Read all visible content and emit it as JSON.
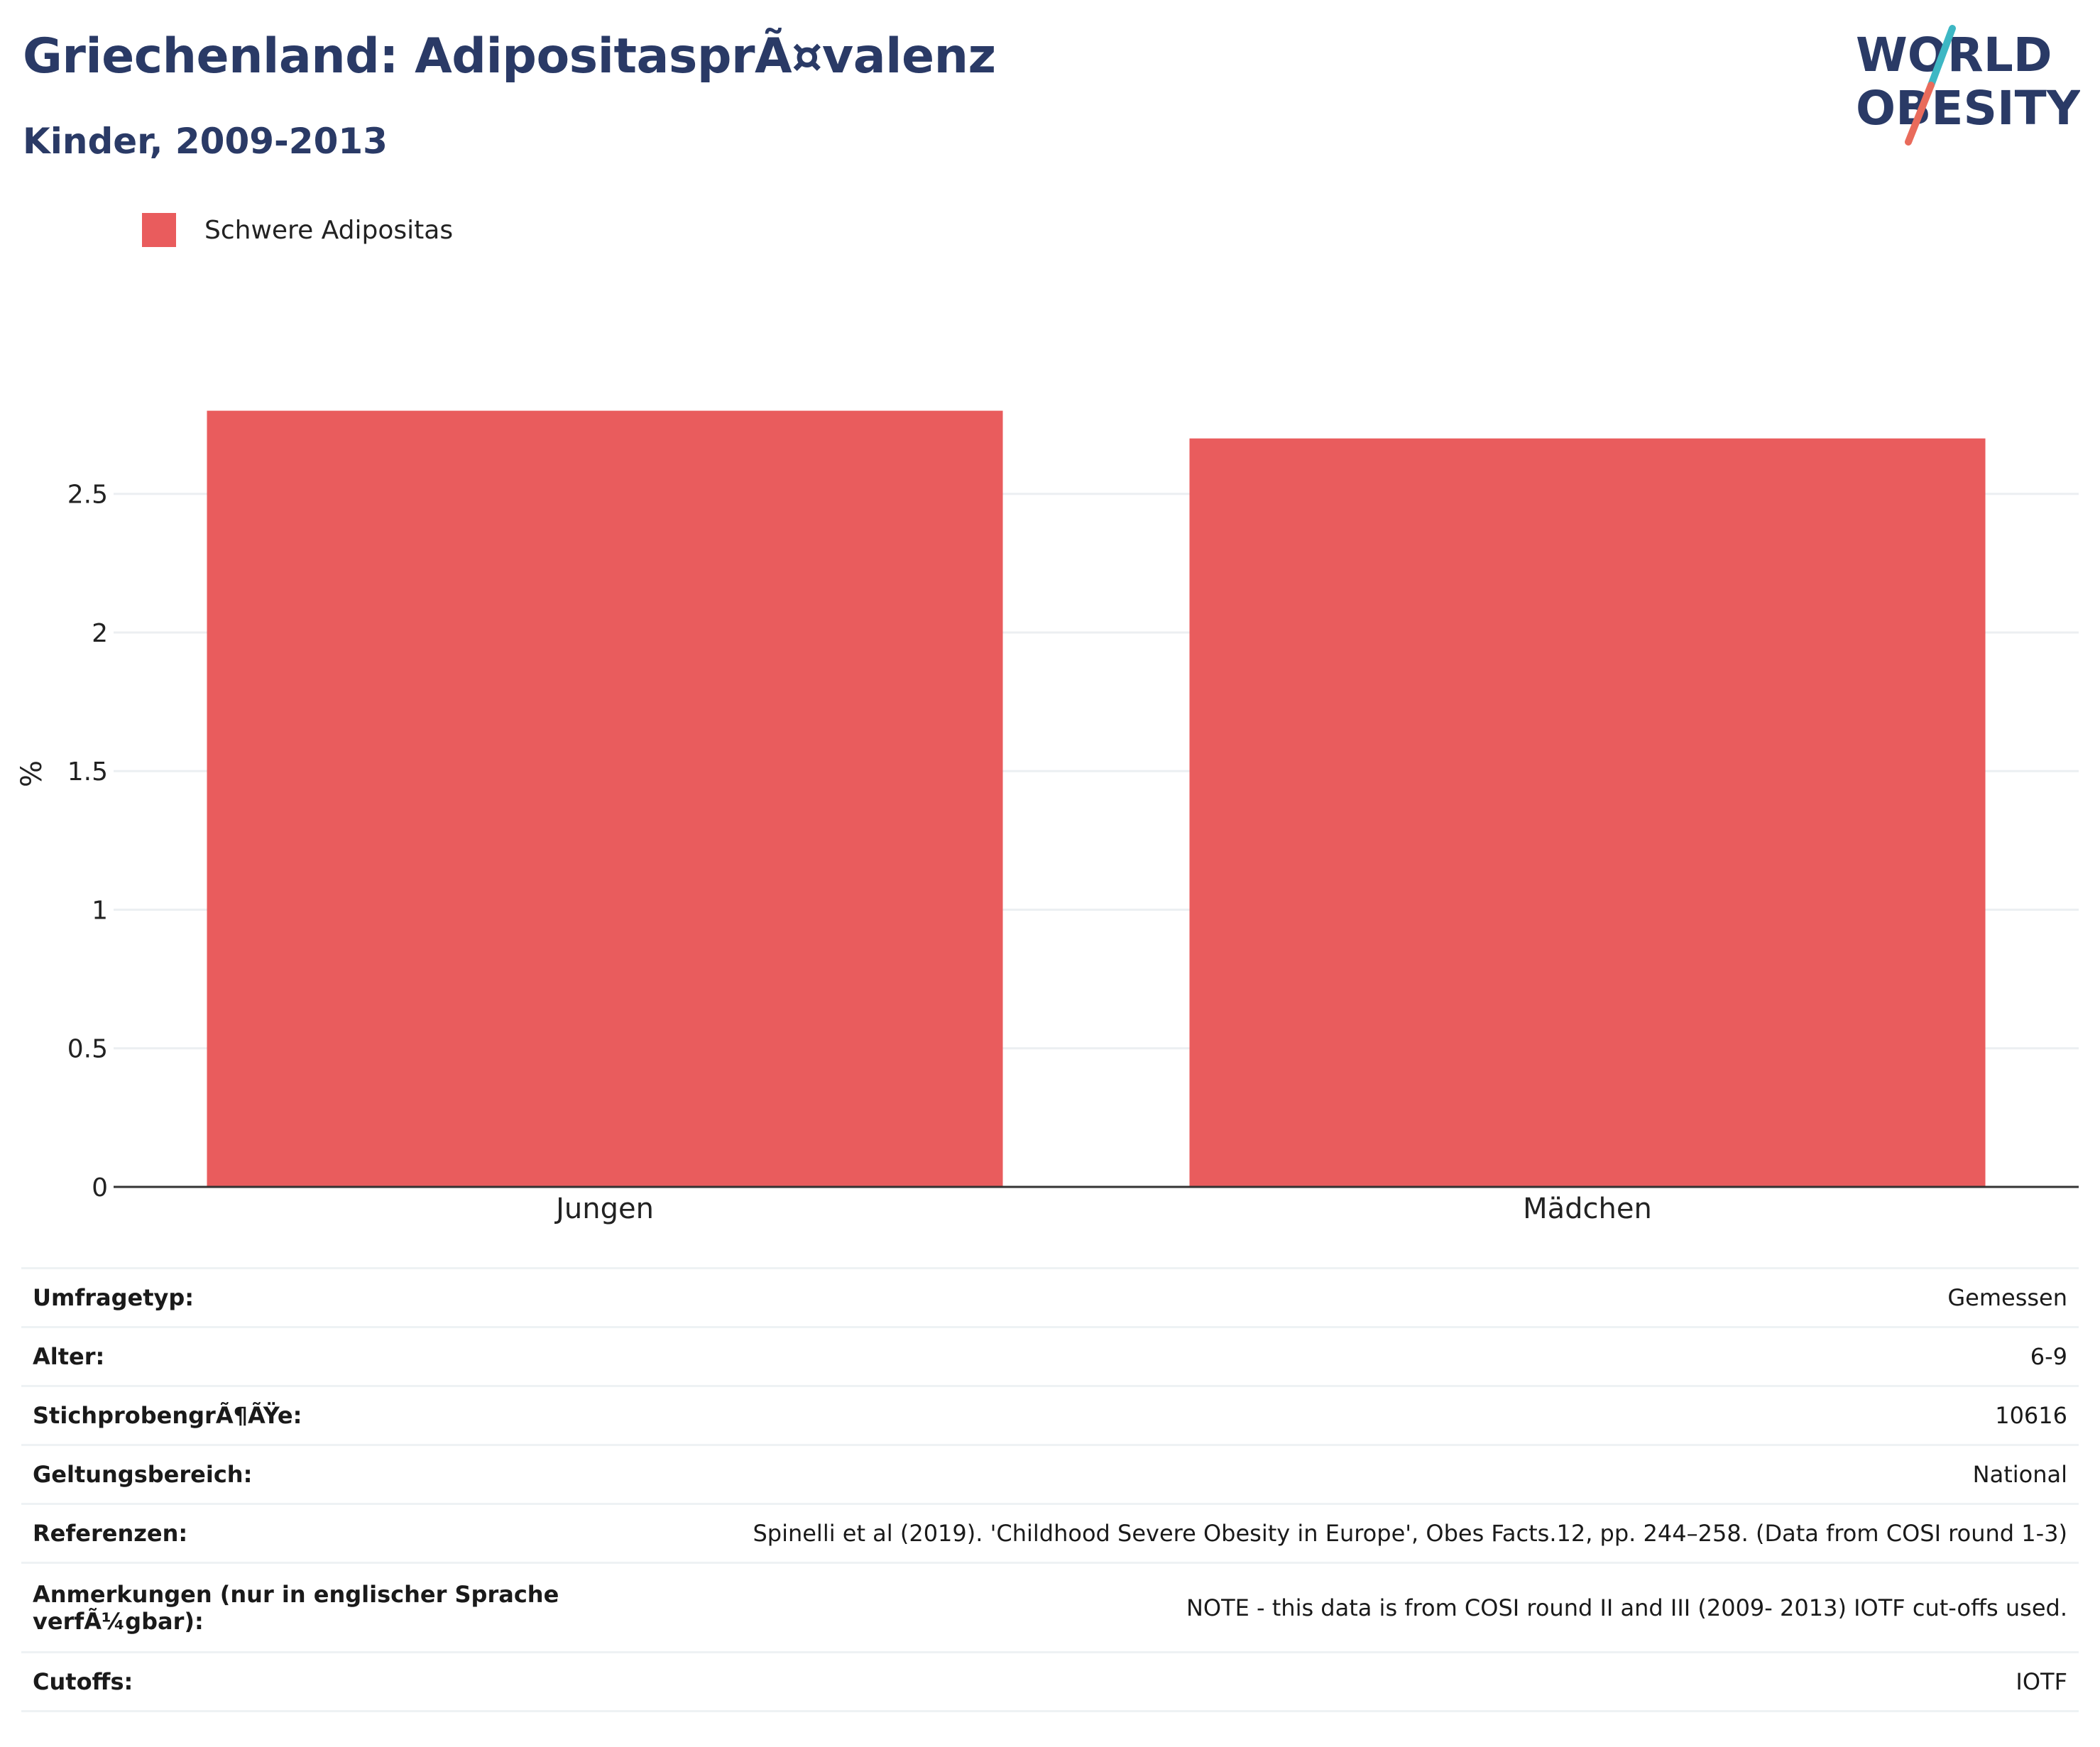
{
  "title": "Griechenland: AdipositasprÃ¤valenz",
  "subtitle": "Kinder, 2009-2013",
  "logo": {
    "line1": "WORLD",
    "line2": "OBESITY"
  },
  "colors": {
    "bar": "#e95c5d",
    "title": "#2a3a66",
    "grid": "#eceff2",
    "axis": "#333333",
    "logo_text": "#2a3a66",
    "logo_slash_top": "#3db7c4",
    "logo_slash_bottom": "#e96b5b"
  },
  "chart_data": {
    "type": "bar",
    "categories": [
      "Jungen",
      "Mädchen"
    ],
    "series": [
      {
        "name": "Schwere Adipositas",
        "values": [
          2.8,
          2.7
        ]
      }
    ],
    "ylabel": "%",
    "yticks": [
      0,
      0.5,
      1,
      1.5,
      2,
      2.5
    ],
    "ytick_labels": [
      "0",
      "0.5",
      "1",
      "1.5",
      "2",
      "2.5"
    ],
    "ylim": [
      0,
      2.95
    ],
    "grid": true,
    "legend_position": "top-left"
  },
  "info": [
    {
      "key": "Umfragetyp:",
      "value": "Gemessen"
    },
    {
      "key": "Alter:",
      "value": "6-9"
    },
    {
      "key": "StichprobengrÃ¶ÃŸe:",
      "value": "10616"
    },
    {
      "key": "Geltungsbereich:",
      "value": "National"
    },
    {
      "key": "Referenzen:",
      "value": "Spinelli et al (2019). 'Childhood Severe Obesity in Europe', Obes Facts.12, pp. 244–258. (Data from COSI round 1-3)"
    },
    {
      "key": "Anmerkungen (nur in englischer Sprache verfÃ¼gbar):",
      "value": "NOTE - this data is from COSI round II and III (2009- 2013) IOTF cut-offs used."
    },
    {
      "key": "Cutoffs:",
      "value": "IOTF"
    }
  ]
}
